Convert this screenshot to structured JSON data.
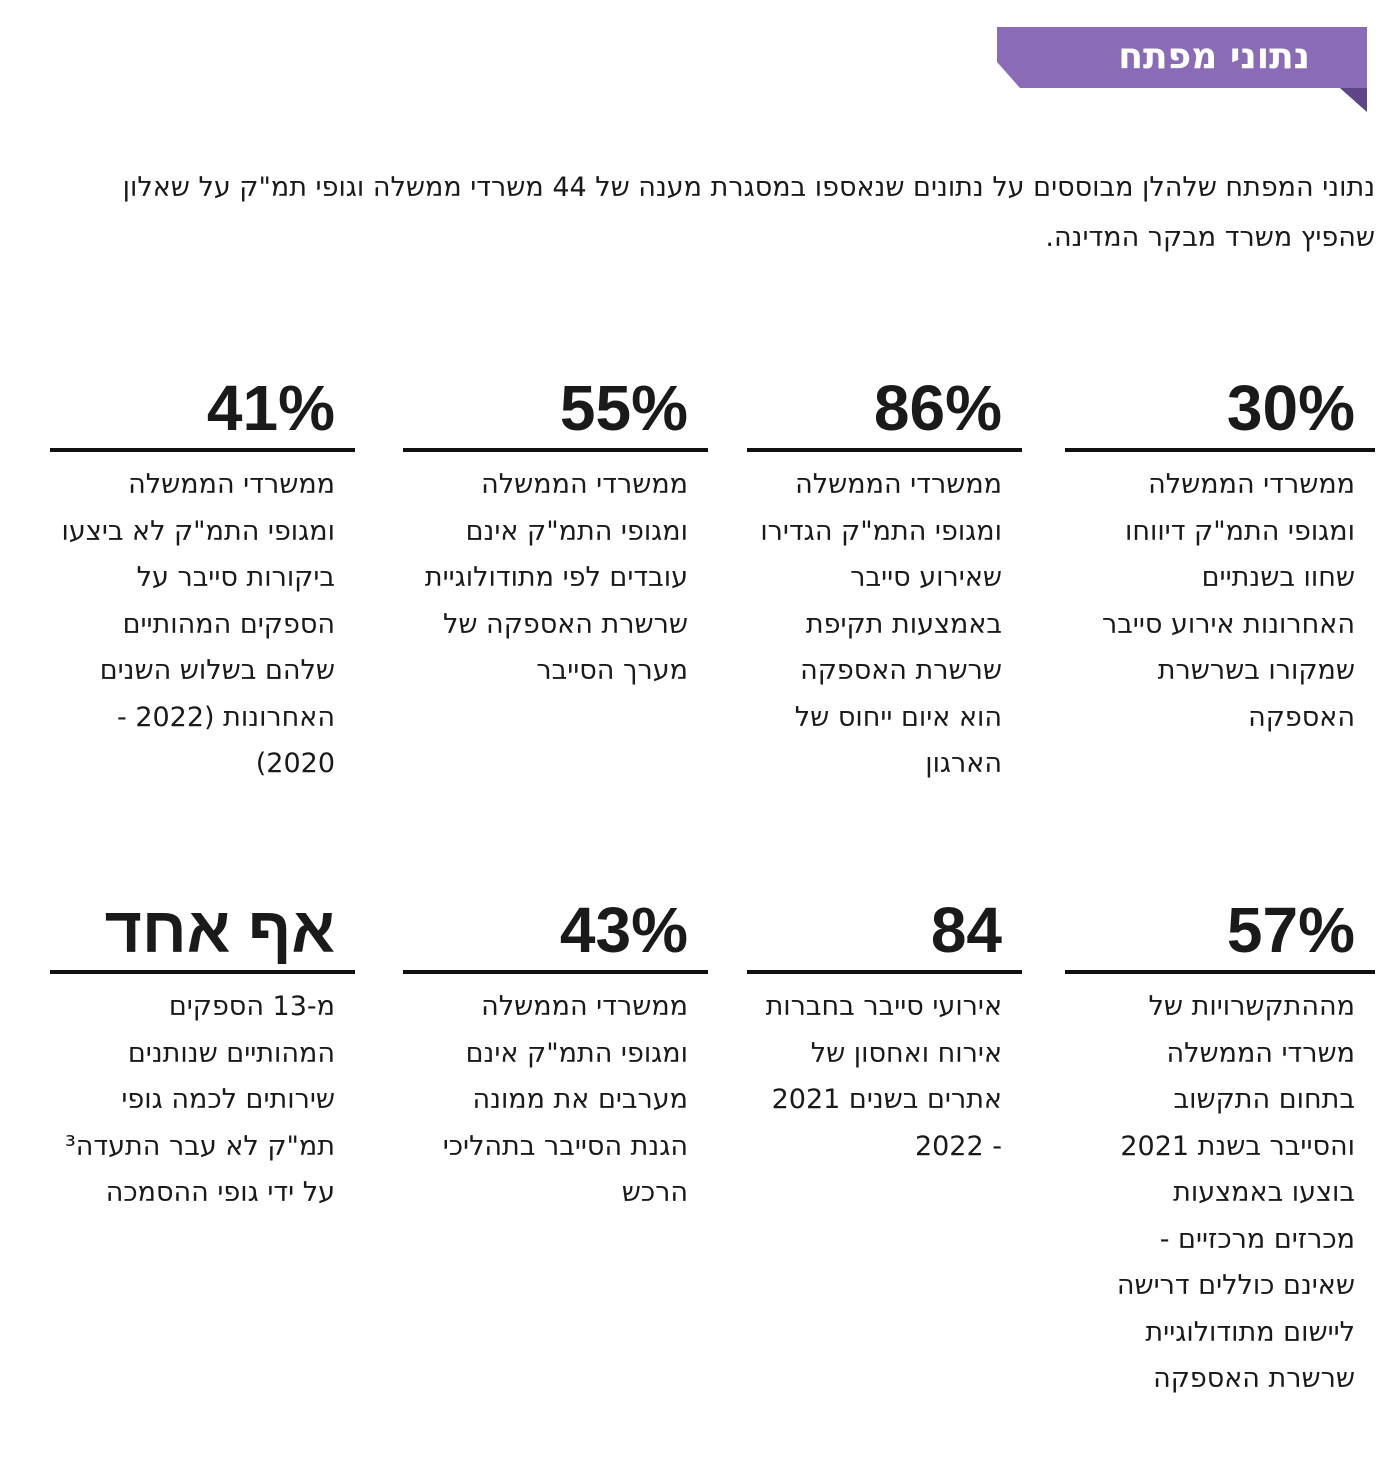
{
  "header": {
    "title": "נתוני מפתח"
  },
  "intro": "נתוני המפתח שלהלן מבוססים על נתונים שנאספו במסגרת מענה של 44 משרדי ממשלה וגופי תמ\"ק על שאלון שהפיץ משרד מבקר המדינה.",
  "stats": [
    {
      "value": "30%",
      "text": "ממשרדי הממשלה ומגופי התמ\"ק דיווחו שחוו בשנתיים האחרונות אירוע סייבר שמקורו בשרשרת האספקה"
    },
    {
      "value": "86%",
      "text": "ממשרדי הממשלה ומגופי התמ\"ק הגדירו שאירוע סייבר באמצעות תקיפת שרשרת האספקה הוא איום ייחוס של הארגון"
    },
    {
      "value": "55%",
      "text": "ממשרדי הממשלה ומגופי התמ\"ק אינם עובדים לפי מתודולוגיית שרשרת האספקה של מערך הסייבר"
    },
    {
      "value": "41%",
      "text": "ממשרדי הממשלה ומגופי התמ\"ק לא ביצעו ביקורות סייבר על הספקים המהותיים שלהם בשלוש השנים האחרונות (2022 - 2020)"
    },
    {
      "value": "57%",
      "text": "מההתקשרויות של משרדי הממשלה בתחום התקשוב והסייבר בשנת 2021 בוצעו באמצעות מכרזים מרכזיים - שאינם כוללים דרישה ליישום מתודולוגיית שרשרת האספקה"
    },
    {
      "value": "84",
      "text": "אירועי סייבר בחברות אירוח ואחסון של אתרים בשנים 2021 - 2022"
    },
    {
      "value": "43%",
      "text": "ממשרדי הממשלה ומגופי התמ\"ק אינם מערבים את ממונה הגנת הסייבר בתהליכי הרכש"
    },
    {
      "value": "אף אחד",
      "text": "מ-13 הספקים המהותיים שנותנים שירותים לכמה גופי תמ\"ק לא עבר התעדה³ על ידי גופי ההסמכה"
    }
  ]
}
